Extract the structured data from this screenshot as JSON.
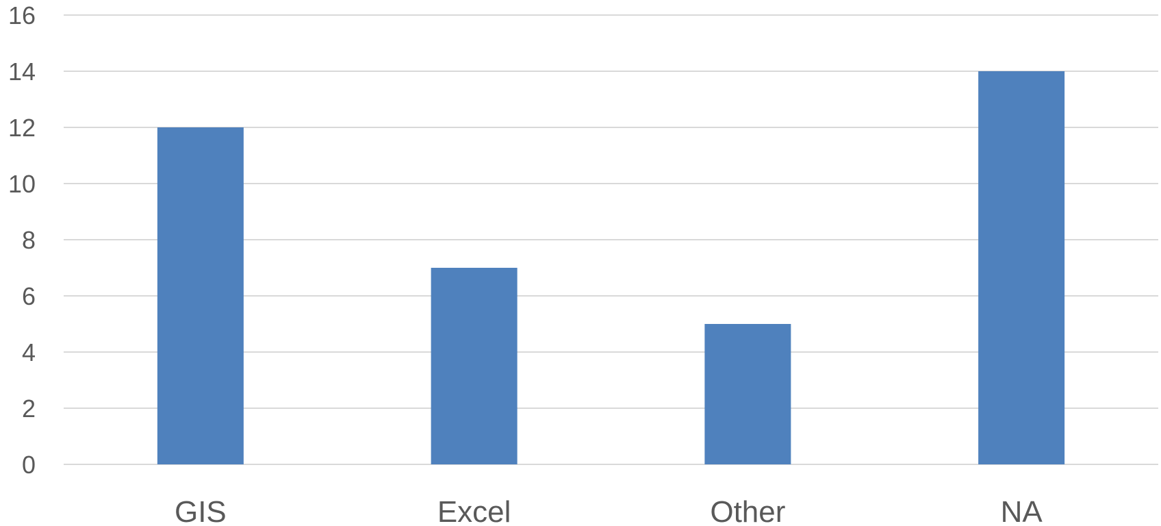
{
  "chart_data": {
    "type": "bar",
    "title": "",
    "xlabel": "",
    "ylabel": "",
    "categories": [
      "GIS",
      "Excel",
      "Other",
      "NA"
    ],
    "values": [
      12,
      7,
      5,
      14
    ],
    "ylim": [
      0,
      16
    ],
    "yticks": [
      0,
      2,
      4,
      6,
      8,
      10,
      12,
      14,
      16
    ],
    "yticks_labels": [
      "0",
      "2",
      "4",
      "6",
      "8",
      "10",
      "12",
      "14",
      "16"
    ],
    "grid": true,
    "legend": "none",
    "colors": {
      "bar": "#4f81bd",
      "grid": "#d9d9d9",
      "text": "#595959"
    }
  }
}
